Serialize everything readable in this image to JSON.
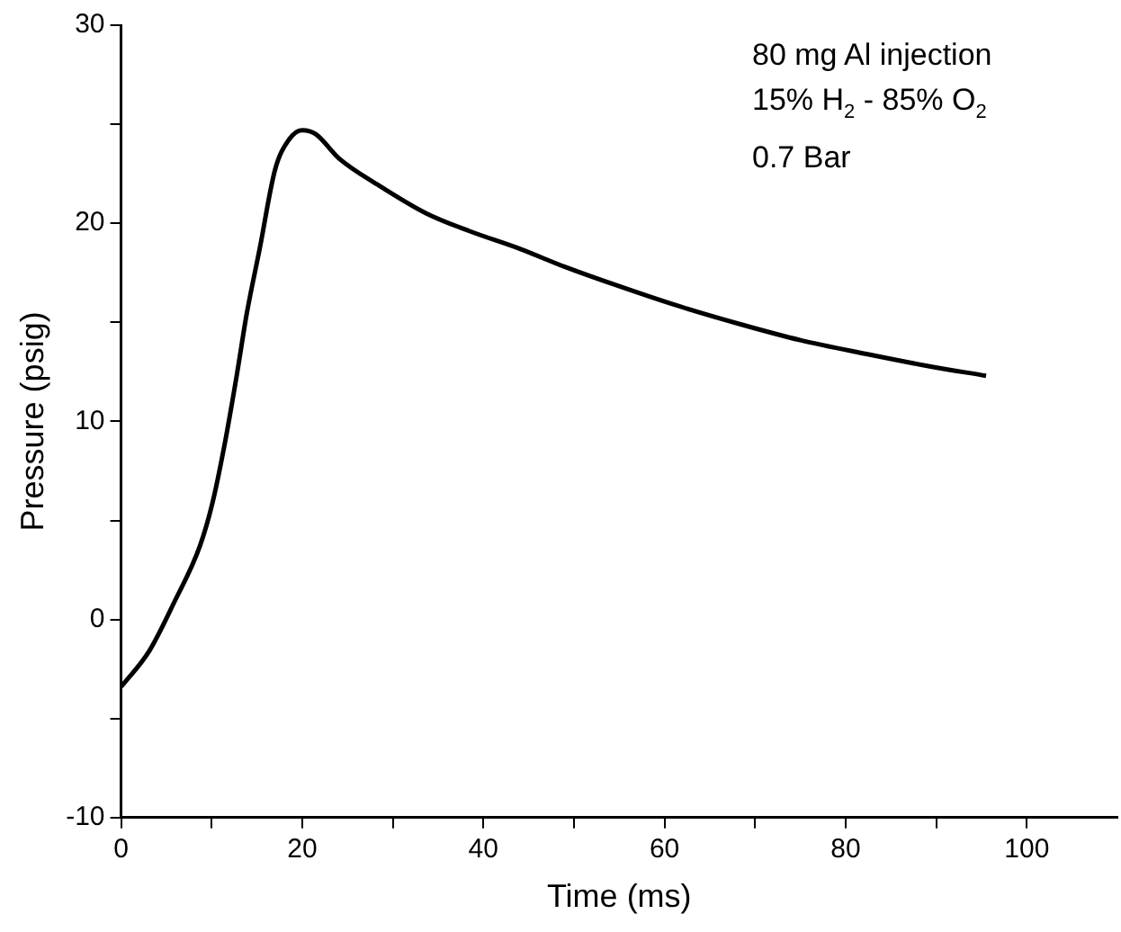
{
  "chart_data": {
    "type": "line",
    "xlabel": "Time (ms)",
    "ylabel": "Pressure (psig)",
    "annotations": [
      "80 mg Al injection",
      "15% H$_{2}$ - 85% O$_{2}$",
      "0.7 Bar"
    ],
    "series": [
      {
        "color": "#000000",
        "x": [
          0,
          3.1,
          5.9,
          8.7,
          10.1,
          11.5,
          12.8,
          13.9,
          15.3,
          17.0,
          18.5,
          20,
          21.5,
          24.0,
          28.5,
          33.7,
          38.5,
          44.1,
          49,
          54.5,
          61,
          68.4,
          75,
          82.3,
          89,
          95.5
        ],
        "values": [
          -3.4,
          -1.6,
          0.9,
          3.7,
          5.9,
          9.0,
          12.4,
          15.5,
          18.7,
          22.7,
          24.2,
          24.7,
          24.5,
          23.3,
          21.9,
          20.5,
          19.6,
          18.7,
          17.8,
          16.9,
          15.9,
          14.9,
          14.1,
          13.4,
          12.8,
          12.3
        ]
      }
    ],
    "xlim": [
      0,
      110
    ],
    "xticks": [
      0,
      {
        "value": 10,
        "label": null
      },
      20,
      {
        "value": 30,
        "label": null
      },
      40,
      {
        "value": 50,
        "label": null
      },
      60,
      {
        "value": 70,
        "label": null
      },
      80,
      {
        "value": 90,
        "label": null
      },
      100
    ],
    "ylim": [
      -10,
      30
    ],
    "yticks": [
      -10,
      {
        "value": -5,
        "label": null
      },
      0,
      {
        "value": 5,
        "label": null
      },
      10,
      {
        "value": 15,
        "label": null
      },
      20,
      {
        "value": 25,
        "label": null
      },
      30
    ],
    "grid": false,
    "legend": false,
    "marker": "none",
    "line_style": "solid"
  }
}
